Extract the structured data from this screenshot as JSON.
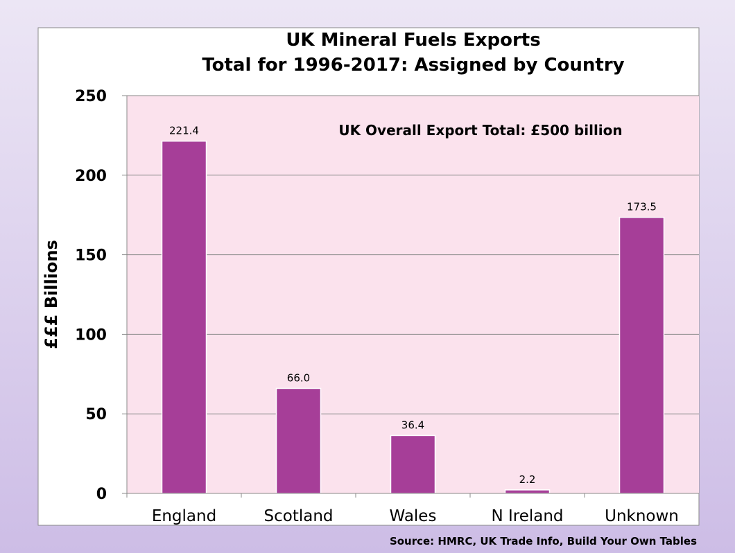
{
  "chart_data": {
    "type": "bar",
    "title": [
      "UK Mineral Fuels Exports",
      "Total for 1996-2017: Assigned by Country"
    ],
    "ylabel": "£££ Billions",
    "xlabel": "",
    "categories": [
      "England",
      "Scotland",
      "Wales",
      "N Ireland",
      "Unknown"
    ],
    "values": [
      221.4,
      66.0,
      36.4,
      2.2,
      173.5
    ],
    "data_labels": [
      "221.4",
      "66.0",
      "36.4",
      "2.2",
      "173.5"
    ],
    "ylim": [
      0,
      250
    ],
    "yticks": [
      0,
      50,
      100,
      150,
      200,
      250
    ],
    "grid": true,
    "annotation": "UK Overall Export Total: £500 billion",
    "source": "Source: HMRC, UK Trade Info, Build Your Own Tables",
    "colors": {
      "bar": "#a63e98",
      "bar_edge": "#ffffff",
      "plot_background": "#fbe2ed",
      "chart_background": "#ffffff",
      "gridline": "#888888"
    }
  }
}
